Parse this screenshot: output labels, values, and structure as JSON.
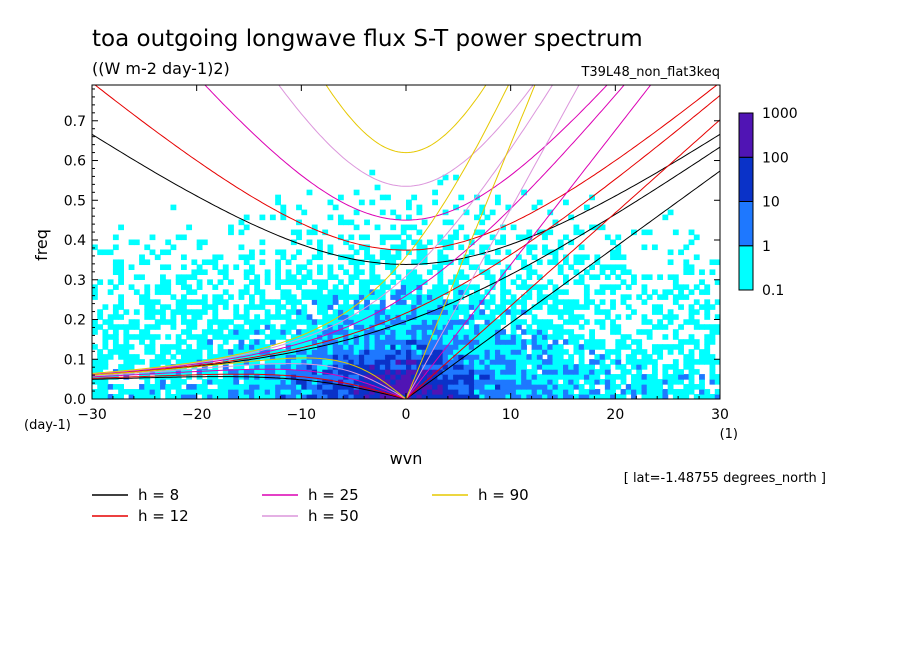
{
  "chart_data": {
    "type": "heatmap",
    "title": "toa outgoing longwave flux S-T power spectrum",
    "subtitle": "((W m-2 day-1)2)",
    "experiment": "T39L48_non_flat3keq",
    "xlabel": "wvn",
    "ylabel": "freq",
    "x_unit_label": "(1)",
    "y_unit_label": "(day-1)",
    "footnote": "[ lat=-1.48755 degrees_north ]",
    "xlim": [
      -30,
      30
    ],
    "ylim": [
      0,
      0.79
    ],
    "xticks": [
      -30,
      -20,
      -10,
      0,
      10,
      20,
      30
    ],
    "xtick_labels": [
      "-30",
      "-20",
      "-10",
      "0",
      "10",
      "20",
      "30"
    ],
    "yticks": [
      0,
      0.1,
      0.2,
      0.3,
      0.4,
      0.5,
      0.6,
      0.7
    ],
    "ytick_labels": [
      "0.0",
      "0.1",
      "0.2",
      "0.3",
      "0.4",
      "0.5",
      "0.6",
      "0.7"
    ],
    "colorbar": {
      "levels": [
        0.1,
        1,
        10,
        100,
        1000
      ],
      "level_labels": [
        "0.1",
        "1",
        "10",
        "100",
        "1000"
      ],
      "colors": [
        "#00ffff",
        "#1e78ff",
        "#0a32c8",
        "#5014b4"
      ]
    },
    "dispersion_curves": [
      {
        "label": "h =  8",
        "h": 8,
        "color": "#000000"
      },
      {
        "label": "h = 12",
        "h": 12,
        "color": "#e60000"
      },
      {
        "label": "h = 25",
        "h": 25,
        "color": "#dc00b4"
      },
      {
        "label": "h = 50",
        "h": 50,
        "color": "#dc96dc"
      },
      {
        "label": "h = 90",
        "h": 90,
        "color": "#e6c800"
      }
    ]
  }
}
